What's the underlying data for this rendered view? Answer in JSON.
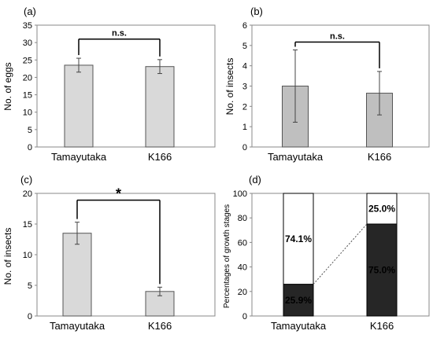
{
  "chart_data": [
    {
      "type": "bar",
      "panel": "(a)",
      "ylabel": "No. of eggs",
      "ylim": [
        0,
        35
      ],
      "yticks": [
        0,
        5,
        10,
        15,
        20,
        25,
        30,
        35
      ],
      "categories": [
        "Tamayutaka",
        "K166"
      ],
      "values": [
        23.5,
        23.1
      ],
      "errors": [
        2.0,
        2.0
      ],
      "bar_color": "#d9d9d9",
      "annotation": "n.s."
    },
    {
      "type": "bar",
      "panel": "(b)",
      "ylabel": "No. of insects",
      "ylim": [
        0,
        6
      ],
      "yticks": [
        0,
        1,
        2,
        3,
        4,
        5,
        6
      ],
      "categories": [
        "Tamayutaka",
        "K166"
      ],
      "values": [
        3.0,
        2.65
      ],
      "errors": [
        1.78,
        1.07
      ],
      "bar_color": "#bfbfbf",
      "annotation": "n.s."
    },
    {
      "type": "bar",
      "panel": "(c)",
      "ylabel": "No. of insects",
      "ylim": [
        0,
        20
      ],
      "yticks": [
        0,
        5,
        10,
        15,
        20
      ],
      "categories": [
        "Tamayutaka",
        "K166"
      ],
      "values": [
        13.5,
        4.0
      ],
      "errors": [
        1.8,
        0.7
      ],
      "bar_color": "#d9d9d9",
      "annotation": "*"
    },
    {
      "type": "bar",
      "stacked": true,
      "panel": "(d)",
      "ylabel": "Percentages of growth stages",
      "ylim": [
        0,
        100
      ],
      "yticks": [
        0,
        20,
        40,
        60,
        80,
        100
      ],
      "categories": [
        "Tamayutaka",
        "K166"
      ],
      "series": [
        {
          "values": [
            25.9,
            75.0
          ],
          "labels": [
            "25.9%",
            "75.0%"
          ],
          "color": "#262626"
        },
        {
          "values": [
            74.1,
            25.0
          ],
          "labels": [
            "74.1%",
            "25.0%"
          ],
          "color": "#ffffff"
        }
      ]
    }
  ]
}
